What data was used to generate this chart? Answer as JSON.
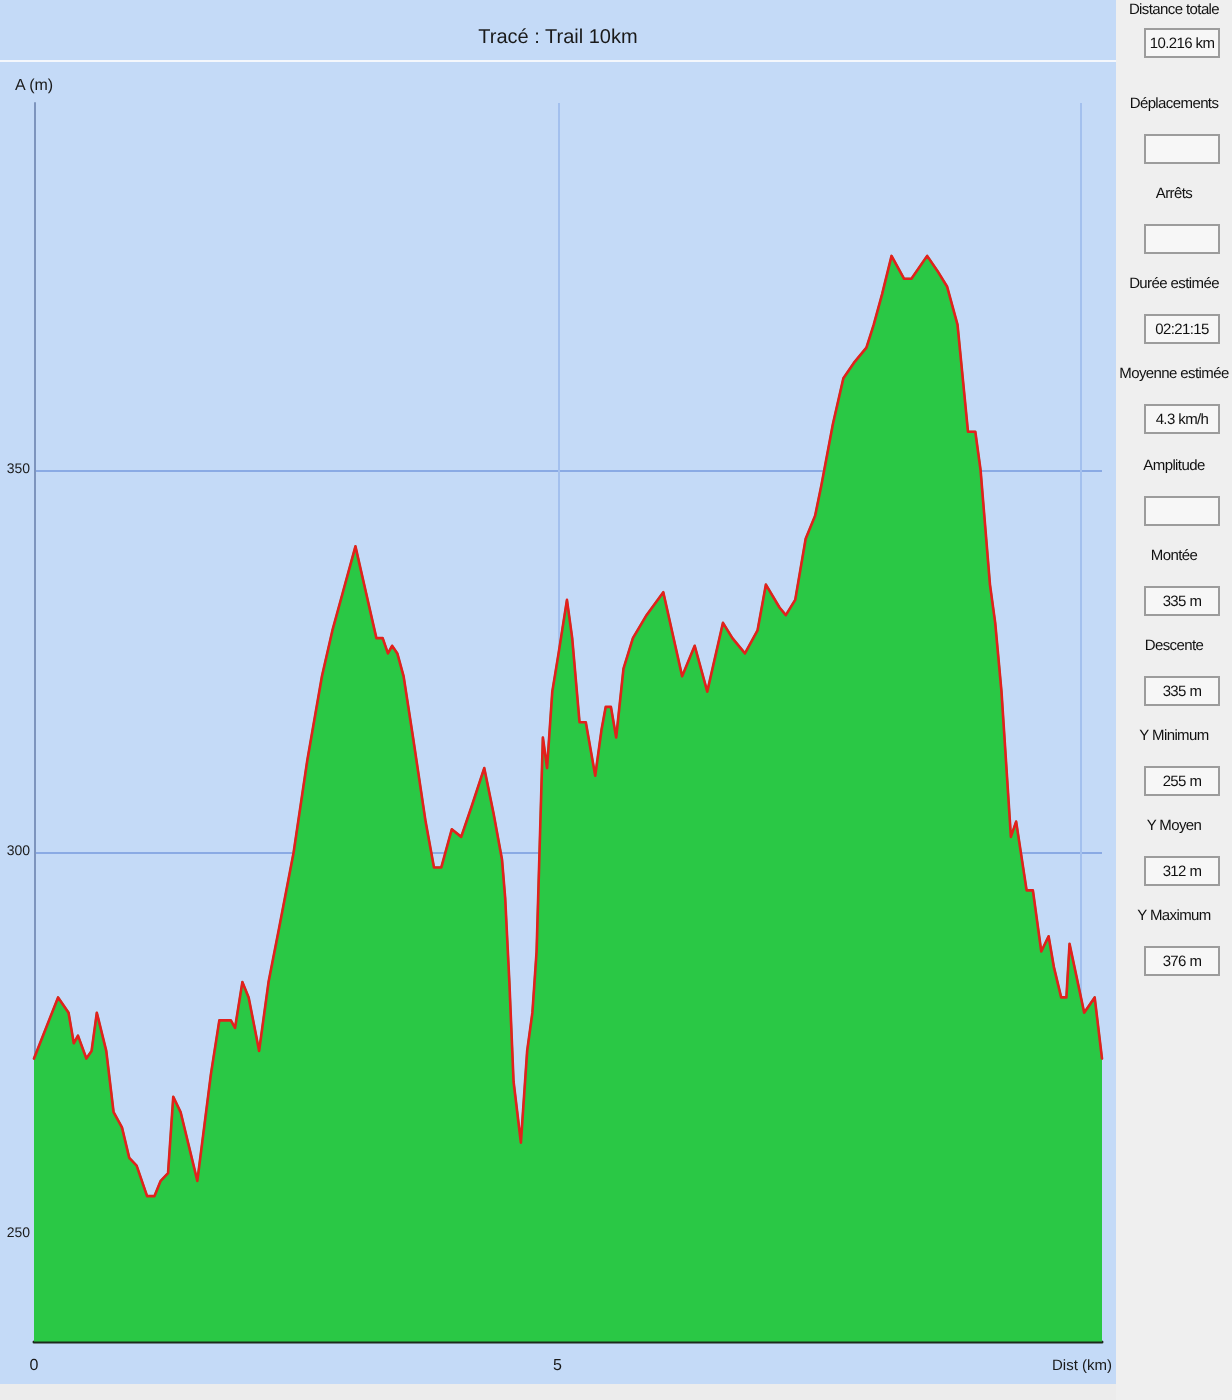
{
  "chart_data": [
    {
      "type": "area",
      "title": "Tracé : Trail 10km",
      "xlabel": "Dist (km)",
      "ylabel": "A (m)",
      "xlim": [
        0,
        10.2
      ],
      "ylim": [
        236,
        398
      ],
      "xticks": [
        0,
        5,
        {
          "value": 10,
          "label": null
        }
      ],
      "yticks": [
        250,
        300,
        350
      ],
      "grid": true,
      "marker": "none",
      "series": [
        {
          "type": "area",
          "color": "#2ac845",
          "x": [
            0,
            0.23,
            0.33,
            0.38,
            0.42,
            0.5,
            0.55,
            0.6,
            0.69,
            0.76,
            0.84,
            0.91,
            0.98,
            1.08,
            1.15,
            1.21,
            1.28,
            1.33,
            1.4,
            1.56,
            1.69,
            1.77,
            1.88,
            1.92,
            1.99,
            2.05,
            2.15,
            2.24,
            2.34,
            2.48,
            2.61,
            2.75,
            2.85,
            2.95,
            3.07,
            3.17,
            3.27,
            3.33,
            3.38,
            3.42,
            3.47,
            3.53,
            3.62,
            3.74,
            3.82,
            3.89,
            3.99,
            4.08,
            4.18,
            4.3,
            4.39,
            4.47,
            4.5,
            4.54,
            4.58,
            4.65,
            4.71,
            4.76,
            4.8,
            4.83,
            4.86,
            4.9,
            4.95,
            5.01,
            5.09,
            5.14,
            5.21,
            5.27,
            5.36,
            5.42,
            5.46,
            5.51,
            5.56,
            5.63,
            5.72,
            5.85,
            6.01,
            6.19,
            6.31,
            6.43,
            6.58,
            6.67,
            6.79,
            6.91,
            6.99,
            7.12,
            7.18,
            7.27,
            7.37,
            7.46,
            7.52,
            7.63,
            7.73,
            7.83,
            7.95,
            8.02,
            8.1,
            8.19,
            8.31,
            8.38,
            8.53,
            8.63,
            8.72,
            8.82,
            8.92,
            8.99,
            9.04,
            9.13,
            9.18,
            9.24,
            9.33,
            9.38,
            9.48,
            9.54,
            9.62,
            9.69,
            9.74,
            9.81,
            9.86,
            9.89,
            10.03,
            10.13,
            10.2
          ],
          "values": [
            273,
            281,
            279,
            275,
            276,
            273,
            274,
            279,
            274,
            266,
            264,
            260,
            259,
            255,
            255,
            257,
            258,
            268,
            266,
            257,
            271,
            278,
            278,
            277,
            283,
            281,
            274,
            283,
            290,
            300,
            312,
            323,
            329,
            334,
            340,
            334,
            328,
            328,
            326,
            327,
            326,
            323,
            315,
            304,
            298,
            298,
            303,
            302,
            306,
            311,
            305,
            299,
            294,
            283,
            270,
            262,
            274,
            279,
            287,
            301,
            315,
            311,
            321,
            326,
            333,
            328,
            317,
            317,
            310,
            316,
            319,
            319,
            315,
            324,
            328,
            331,
            334,
            323,
            327,
            321,
            330,
            328,
            326,
            329,
            335,
            332,
            331,
            333,
            341,
            344,
            348,
            356,
            362,
            364,
            366,
            369,
            373,
            378,
            375,
            375,
            378,
            376,
            374,
            369,
            355,
            355,
            350,
            335,
            330,
            321,
            302,
            304,
            295,
            295,
            287,
            289,
            285,
            281,
            281,
            288,
            279,
            281,
            273
          ]
        },
        {
          "type": "line",
          "color": "#e3201c",
          "x": [
            0,
            0.23,
            0.33,
            0.38,
            0.42,
            0.5,
            0.55,
            0.6,
            0.69,
            0.76,
            0.84,
            0.91,
            0.98,
            1.08,
            1.15,
            1.21,
            1.28,
            1.33,
            1.4,
            1.56,
            1.69,
            1.77,
            1.88,
            1.92,
            1.99,
            2.05,
            2.15,
            2.24,
            2.34,
            2.48,
            2.61,
            2.75,
            2.85,
            2.95,
            3.07,
            3.17,
            3.27,
            3.33,
            3.38,
            3.42,
            3.47,
            3.53,
            3.62,
            3.74,
            3.82,
            3.89,
            3.99,
            4.08,
            4.18,
            4.3,
            4.39,
            4.47,
            4.5,
            4.54,
            4.58,
            4.65,
            4.71,
            4.76,
            4.8,
            4.83,
            4.86,
            4.9,
            4.95,
            5.01,
            5.09,
            5.14,
            5.21,
            5.27,
            5.36,
            5.42,
            5.46,
            5.51,
            5.56,
            5.63,
            5.72,
            5.85,
            6.01,
            6.19,
            6.31,
            6.43,
            6.58,
            6.67,
            6.79,
            6.91,
            6.99,
            7.12,
            7.18,
            7.27,
            7.37,
            7.46,
            7.52,
            7.63,
            7.73,
            7.83,
            7.95,
            8.02,
            8.1,
            8.19,
            8.31,
            8.38,
            8.53,
            8.63,
            8.72,
            8.82,
            8.92,
            8.99,
            9.04,
            9.13,
            9.18,
            9.24,
            9.33,
            9.38,
            9.48,
            9.54,
            9.62,
            9.69,
            9.74,
            9.81,
            9.86,
            9.89,
            10.03,
            10.13,
            10.2
          ],
          "values": [
            273,
            281,
            279,
            275,
            276,
            273,
            274,
            279,
            274,
            266,
            264,
            260,
            259,
            255,
            255,
            257,
            258,
            268,
            266,
            257,
            271,
            278,
            278,
            277,
            283,
            281,
            274,
            283,
            290,
            300,
            312,
            323,
            329,
            334,
            340,
            334,
            328,
            328,
            326,
            327,
            326,
            323,
            315,
            304,
            298,
            298,
            303,
            302,
            306,
            311,
            305,
            299,
            294,
            283,
            270,
            262,
            274,
            279,
            287,
            301,
            315,
            311,
            321,
            326,
            333,
            328,
            317,
            317,
            310,
            316,
            319,
            319,
            315,
            324,
            328,
            331,
            334,
            323,
            327,
            321,
            330,
            328,
            326,
            329,
            335,
            332,
            331,
            333,
            341,
            344,
            348,
            356,
            362,
            364,
            366,
            369,
            373,
            378,
            375,
            375,
            378,
            376,
            374,
            369,
            355,
            355,
            350,
            335,
            330,
            321,
            302,
            304,
            295,
            295,
            287,
            289,
            285,
            281,
            281,
            288,
            279,
            281,
            273
          ]
        }
      ]
    },
    {
      "type": "other",
      "categories": [
        "Distance totale",
        "Déplacements",
        "Arrêts",
        "Durée estimée",
        "Moyenne estimée",
        "Amplitude",
        "Montée",
        "Descente",
        "Y Minimum",
        "Y Moyen",
        "Y Maximum"
      ],
      "value_labels": [
        "10.216 km",
        null,
        null,
        "02:21:15",
        "4.3 km/h",
        null,
        "335 m",
        "335 m",
        "255 m",
        "312 m",
        "376 m"
      ]
    }
  ]
}
